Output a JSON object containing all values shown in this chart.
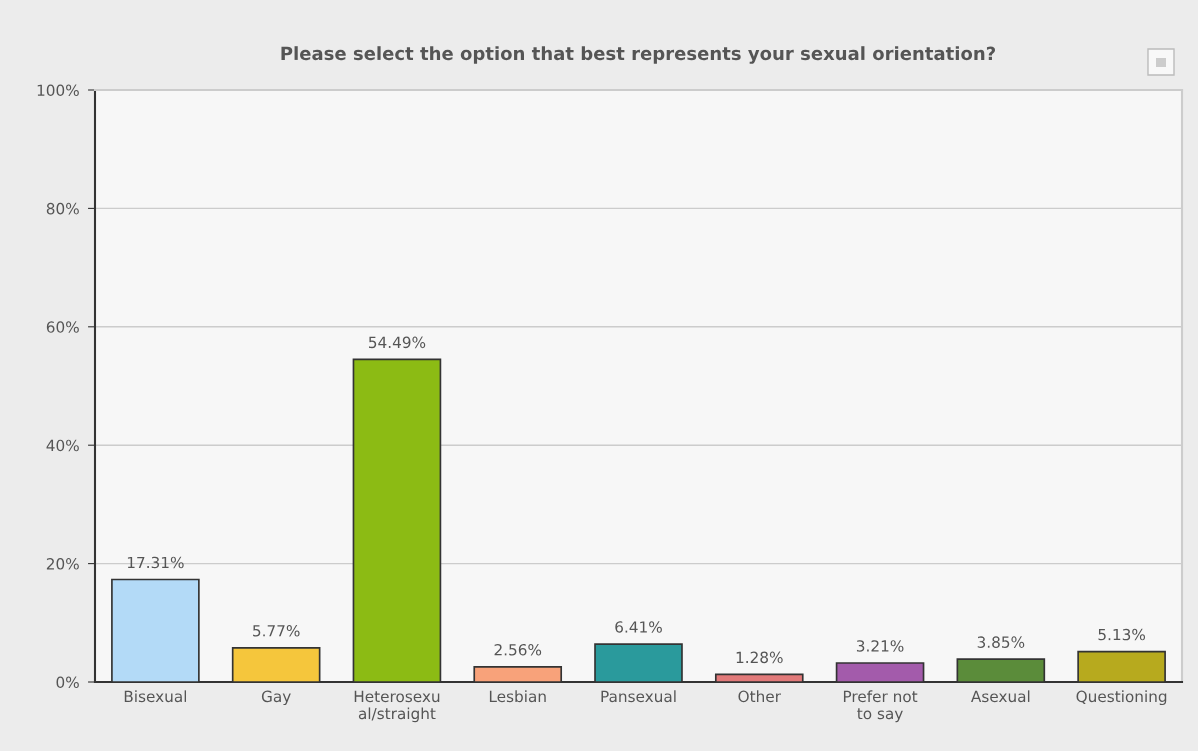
{
  "chart_data": {
    "type": "bar",
    "title": "Please select the option that best represents your sexual orientation?",
    "categories": [
      "Bisexual",
      "Gay",
      "Heterosexu\nal/straight",
      "Lesbian",
      "Pansexual",
      "Other",
      "Prefer not\nto say",
      "Asexual",
      "Questioning"
    ],
    "values": [
      17.31,
      5.77,
      54.49,
      2.56,
      6.41,
      1.28,
      3.21,
      3.85,
      5.13
    ],
    "colors": [
      "#b3daf7",
      "#f5c63c",
      "#8cbb14",
      "#f8a27a",
      "#2a9a9c",
      "#e27a7a",
      "#a35bab",
      "#5b8c3a",
      "#b7aa1e"
    ],
    "value_labels": [
      "17.31%",
      "5.77%",
      "54.49%",
      "2.56%",
      "6.41%",
      "1.28%",
      "3.21%",
      "3.85%",
      "5.13%"
    ],
    "ylim": [
      0,
      100
    ],
    "yticks": [
      {
        "value": 0,
        "label": "0%"
      },
      {
        "value": 20,
        "label": "20%"
      },
      {
        "value": 40,
        "label": "40%"
      },
      {
        "value": 60,
        "label": "60%"
      },
      {
        "value": 80,
        "label": "80%"
      },
      {
        "value": 100,
        "label": "100%"
      }
    ],
    "grid": "y",
    "legend": false
  }
}
